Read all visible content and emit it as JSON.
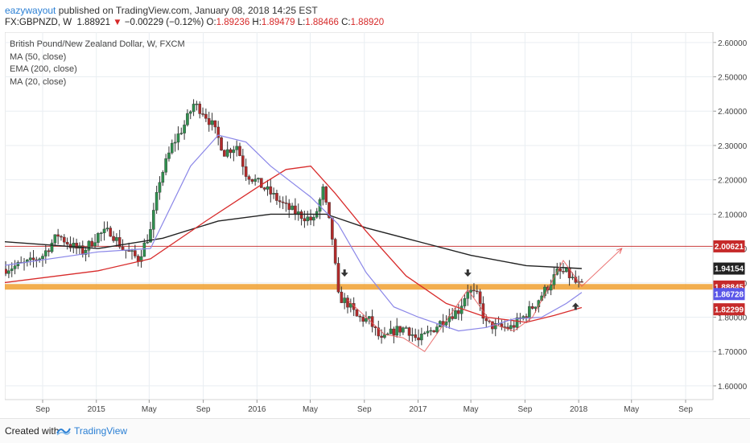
{
  "header": {
    "author": "eazywayout",
    "published": " published on TradingView.com, January 08, 2018 14:25 EST",
    "symbol": "FX:GBPNZD, W",
    "last": "1.88921",
    "arrow": "▼",
    "change": "−0.00229 (−0.12%)",
    "ohlc": [
      {
        "k": "O:",
        "v": "1.89236"
      },
      {
        "k": "H:",
        "v": "1.89479"
      },
      {
        "k": "L:",
        "v": "1.88466"
      },
      {
        "k": "C:",
        "v": "1.88920"
      }
    ]
  },
  "legend": {
    "title": "British Pound/New Zealand Dollar, W, FXCM",
    "items": [
      "MA (50, close)",
      "EMA (200, close)",
      "MA (20, close)"
    ]
  },
  "footer": {
    "created": "Created with",
    "brand": "TradingView"
  },
  "colors": {
    "up": "#2f8f4e",
    "down": "#b22a2a",
    "ma50": "#d82b2b",
    "ema200": "#222222",
    "ma20": "#8a86e8",
    "sr_band": "#f0a030",
    "resistance": "#c83b3b",
    "grid": "#e9eef2"
  },
  "chart_data": {
    "type": "candlestick",
    "title": "British Pound/New Zealand Dollar, W, FXCM",
    "y_range": [
      1.56,
      2.63
    ],
    "y_ticks": [
      "1.60000",
      "1.70000",
      "1.80000",
      "1.90000",
      "2.00000",
      "2.10000",
      "2.20000",
      "2.30000",
      "2.40000",
      "2.50000",
      "2.60000"
    ],
    "x_ticks": [
      {
        "label": "Sep",
        "date": "2014-09-01"
      },
      {
        "label": "2015",
        "date": "2015-01-01"
      },
      {
        "label": "May",
        "date": "2015-05-01"
      },
      {
        "label": "Sep",
        "date": "2015-09-01"
      },
      {
        "label": "2016",
        "date": "2016-01-01"
      },
      {
        "label": "May",
        "date": "2016-05-01"
      },
      {
        "label": "Sep",
        "date": "2016-09-01"
      },
      {
        "label": "2017",
        "date": "2017-01-01"
      },
      {
        "label": "May",
        "date": "2017-05-01"
      },
      {
        "label": "Sep",
        "date": "2017-09-01"
      },
      {
        "label": "2018",
        "date": "2018-01-01"
      },
      {
        "label": "May",
        "date": "2018-05-01"
      },
      {
        "label": "Sep",
        "date": "2018-09-01"
      }
    ],
    "price_path": [
      [
        "2014-06-02",
        1.94
      ],
      [
        "2014-07-07",
        1.95
      ],
      [
        "2014-08-04",
        1.96
      ],
      [
        "2014-09-01",
        1.98
      ],
      [
        "2014-10-06",
        2.04
      ],
      [
        "2014-11-03",
        2.01
      ],
      [
        "2014-12-01",
        1.99
      ],
      [
        "2015-01-05",
        2.04
      ],
      [
        "2015-02-02",
        2.05
      ],
      [
        "2015-03-02",
        2.0
      ],
      [
        "2015-04-06",
        1.97
      ],
      [
        "2015-05-04",
        2.05
      ],
      [
        "2015-05-25",
        2.2
      ],
      [
        "2015-06-22",
        2.3
      ],
      [
        "2015-07-20",
        2.36
      ],
      [
        "2015-08-10",
        2.42
      ],
      [
        "2015-08-31",
        2.4
      ],
      [
        "2015-09-21",
        2.36
      ],
      [
        "2015-10-19",
        2.28
      ],
      [
        "2015-11-16",
        2.3
      ],
      [
        "2015-12-07",
        2.22
      ],
      [
        "2016-01-04",
        2.19
      ],
      [
        "2016-02-01",
        2.16
      ],
      [
        "2016-03-07",
        2.12
      ],
      [
        "2016-04-04",
        2.1
      ],
      [
        "2016-05-09",
        2.08
      ],
      [
        "2016-05-30",
        2.17
      ],
      [
        "2016-06-20",
        2.03
      ],
      [
        "2016-07-04",
        1.86
      ],
      [
        "2016-07-25",
        1.84
      ],
      [
        "2016-08-15",
        1.8
      ],
      [
        "2016-09-12",
        1.79
      ],
      [
        "2016-10-10",
        1.73
      ],
      [
        "2016-11-07",
        1.76
      ],
      [
        "2016-12-05",
        1.77
      ],
      [
        "2017-01-02",
        1.73
      ],
      [
        "2017-01-30",
        1.76
      ],
      [
        "2017-03-06",
        1.8
      ],
      [
        "2017-04-03",
        1.82
      ],
      [
        "2017-04-24",
        1.88
      ],
      [
        "2017-05-15",
        1.86
      ],
      [
        "2017-06-05",
        1.78
      ],
      [
        "2017-07-03",
        1.77
      ],
      [
        "2017-07-31",
        1.77
      ],
      [
        "2017-08-28",
        1.8
      ],
      [
        "2017-09-25",
        1.84
      ],
      [
        "2017-10-23",
        1.89
      ],
      [
        "2017-11-13",
        1.93
      ],
      [
        "2017-12-04",
        1.93
      ],
      [
        "2017-12-25",
        1.9
      ],
      [
        "2018-01-08",
        1.889
      ]
    ],
    "ma50_path": [
      [
        "2014-06-02",
        1.9
      ],
      [
        "2015-01-05",
        1.935
      ],
      [
        "2015-05-04",
        1.97
      ],
      [
        "2015-09-07",
        2.08
      ],
      [
        "2016-01-04",
        2.18
      ],
      [
        "2016-03-07",
        2.23
      ],
      [
        "2016-05-02",
        2.24
      ],
      [
        "2016-06-27",
        2.16
      ],
      [
        "2016-09-05",
        2.05
      ],
      [
        "2016-12-05",
        1.92
      ],
      [
        "2017-03-06",
        1.84
      ],
      [
        "2017-06-05",
        1.8
      ],
      [
        "2017-09-04",
        1.785
      ],
      [
        "2017-11-06",
        1.805
      ],
      [
        "2018-01-08",
        1.828
      ]
    ],
    "ema200_path": [
      [
        "2014-06-02",
        2.02
      ],
      [
        "2015-01-05",
        2.0
      ],
      [
        "2015-06-01",
        2.03
      ],
      [
        "2015-10-05",
        2.08
      ],
      [
        "2016-02-01",
        2.1
      ],
      [
        "2016-06-06",
        2.1
      ],
      [
        "2016-09-05",
        2.06
      ],
      [
        "2017-01-02",
        2.02
      ],
      [
        "2017-05-01",
        1.98
      ],
      [
        "2017-09-04",
        1.95
      ],
      [
        "2018-01-08",
        1.94154
      ]
    ],
    "ma20_path": [
      [
        "2014-06-02",
        1.95
      ],
      [
        "2015-01-05",
        1.99
      ],
      [
        "2015-05-04",
        2.0
      ],
      [
        "2015-08-03",
        2.24
      ],
      [
        "2015-10-05",
        2.33
      ],
      [
        "2015-12-07",
        2.31
      ],
      [
        "2016-02-01",
        2.24
      ],
      [
        "2016-05-02",
        2.15
      ],
      [
        "2016-07-04",
        2.07
      ],
      [
        "2016-09-05",
        1.93
      ],
      [
        "2016-11-07",
        1.83
      ],
      [
        "2017-01-02",
        1.8
      ],
      [
        "2017-04-03",
        1.76
      ],
      [
        "2017-06-05",
        1.77
      ],
      [
        "2017-08-07",
        1.795
      ],
      [
        "2017-10-09",
        1.8
      ],
      [
        "2017-12-04",
        1.84
      ],
      [
        "2018-01-08",
        1.872
      ]
    ],
    "horizontal_levels": [
      {
        "value": 2.00621,
        "label": "2.00621",
        "kind": "resistance-line"
      },
      {
        "value": 1.8884,
        "kind": "support-band"
      }
    ],
    "drawn_path": [
      [
        "2016-07-25",
        1.85
      ],
      [
        "2016-10-17",
        1.75
      ],
      [
        "2016-11-28",
        1.74
      ],
      [
        "2017-01-16",
        1.7
      ],
      [
        "2017-04-24",
        1.88
      ],
      [
        "2017-06-19",
        1.78
      ],
      [
        "2017-08-07",
        1.76
      ],
      [
        "2017-09-18",
        1.8
      ],
      [
        "2017-11-27",
        1.965
      ],
      [
        "2018-01-08",
        1.89
      ],
      [
        "2018-04-09",
        2.0
      ]
    ],
    "markers": [
      {
        "date": "2016-07-18",
        "value": 1.925,
        "dir": "down"
      },
      {
        "date": "2017-04-24",
        "value": 1.925,
        "dir": "down"
      },
      {
        "date": "2017-12-25",
        "value": 1.835,
        "dir": "up"
      }
    ],
    "price_labels": [
      {
        "value": 2.00621,
        "label": "2.00621",
        "bg": "#c62a2a",
        "fg": "#ffffff"
      },
      {
        "value": 1.94154,
        "label": "1.94154",
        "bg": "#222222",
        "fg": "#ffffff"
      },
      {
        "value": 1.8892,
        "label": "1.88920",
        "bg": "#ffffff",
        "fg": "#b22a2a",
        "border": "#b22a2a"
      },
      {
        "value": 1.88845,
        "label": "1.88845",
        "bg": "#c62a2a",
        "fg": "#ffffff"
      },
      {
        "value": 1.86728,
        "label": "1.86728",
        "bg": "#5a56e8",
        "fg": "#ffffff"
      },
      {
        "value": 1.82299,
        "label": "1.82299",
        "bg": "#c62a2a",
        "fg": "#ffffff"
      }
    ]
  }
}
